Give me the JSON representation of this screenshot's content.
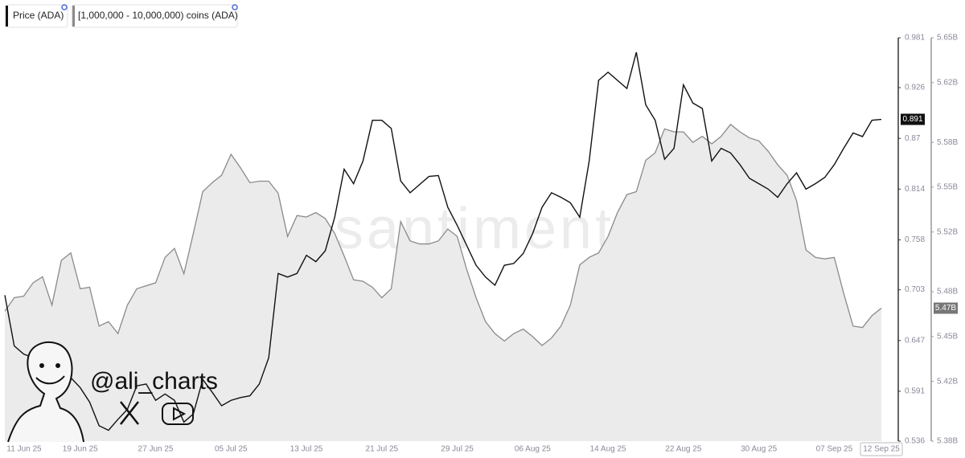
{
  "chart_data": {
    "type": "line",
    "legend": "top-left",
    "watermark": "santiment",
    "annotation": "@ali_charts",
    "x": [
      "11 Jun 25",
      "12 Jun 25",
      "13 Jun 25",
      "14 Jun 25",
      "15 Jun 25",
      "16 Jun 25",
      "17 Jun 25",
      "18 Jun 25",
      "19 Jun 25",
      "20 Jun 25",
      "21 Jun 25",
      "22 Jun 25",
      "23 Jun 25",
      "24 Jun 25",
      "25 Jun 25",
      "26 Jun 25",
      "27 Jun 25",
      "28 Jun 25",
      "29 Jun 25",
      "30 Jun 25",
      "01 Jul 25",
      "02 Jul 25",
      "03 Jul 25",
      "04 Jul 25",
      "05 Jul 25",
      "06 Jul 25",
      "07 Jul 25",
      "08 Jul 25",
      "09 Jul 25",
      "10 Jul 25",
      "11 Jul 25",
      "12 Jul 25",
      "13 Jul 25",
      "14 Jul 25",
      "15 Jul 25",
      "16 Jul 25",
      "17 Jul 25",
      "18 Jul 25",
      "19 Jul 25",
      "20 Jul 25",
      "21 Jul 25",
      "22 Jul 25",
      "23 Jul 25",
      "24 Jul 25",
      "25 Jul 25",
      "26 Jul 25",
      "27 Jul 25",
      "28 Jul 25",
      "29 Jul 25",
      "30 Jul 25",
      "31 Jul 25",
      "01 Aug 25",
      "02 Aug 25",
      "03 Aug 25",
      "04 Aug 25",
      "05 Aug 25",
      "06 Aug 25",
      "07 Aug 25",
      "08 Aug 25",
      "09 Aug 25",
      "10 Aug 25",
      "11 Aug 25",
      "12 Aug 25",
      "13 Aug 25",
      "14 Aug 25",
      "15 Aug 25",
      "16 Aug 25",
      "17 Aug 25",
      "18 Aug 25",
      "19 Aug 25",
      "20 Aug 25",
      "21 Aug 25",
      "22 Aug 25",
      "23 Aug 25",
      "24 Aug 25",
      "25 Aug 25",
      "26 Aug 25",
      "27 Aug 25",
      "28 Aug 25",
      "29 Aug 25",
      "30 Aug 25",
      "31 Aug 25",
      "01 Sep 25",
      "02 Sep 25",
      "03 Sep 25",
      "04 Sep 25",
      "05 Sep 25",
      "06 Sep 25",
      "07 Sep 25",
      "08 Sep 25",
      "09 Sep 25",
      "10 Sep 25",
      "11 Sep 25",
      "12 Sep 25"
    ],
    "xticks": [
      "11 Jun 25",
      "19 Jun 25",
      "27 Jun 25",
      "05 Jul 25",
      "13 Jul 25",
      "21 Jul 25",
      "29 Jul 25",
      "06 Aug 25",
      "14 Aug 25",
      "22 Aug 25",
      "30 Aug 25",
      "07 Sep 25",
      "12 Sep 25"
    ],
    "ylim": [
      0.536,
      0.981
    ],
    "yticks": [
      0.981,
      0.926,
      0.87,
      0.814,
      0.758,
      0.703,
      0.647,
      0.591,
      0.536
    ],
    "y2lim": [
      5.38,
      5.65
    ],
    "y2ticks": [
      {
        "value": 5.65,
        "label": "5.65B"
      },
      {
        "value": 5.62,
        "label": "5.62B"
      },
      {
        "value": 5.58,
        "label": "5.58B"
      },
      {
        "value": 5.55,
        "label": "5.55B"
      },
      {
        "value": 5.52,
        "label": "5.52B"
      },
      {
        "value": 5.48,
        "label": "5.48B"
      },
      {
        "value": 5.45,
        "label": "5.45B"
      },
      {
        "value": 5.42,
        "label": "5.42B"
      },
      {
        "value": 5.38,
        "label": "5.38B"
      }
    ],
    "series": [
      {
        "name": "Price (ADA)",
        "color": "#111111",
        "axis": "y",
        "values": [
          0.697,
          0.641,
          0.632,
          0.628,
          0.64,
          0.626,
          0.617,
          0.606,
          0.595,
          0.579,
          0.553,
          0.548,
          0.56,
          0.571,
          0.597,
          0.599,
          0.581,
          0.588,
          0.581,
          0.557,
          0.566,
          0.604,
          0.59,
          0.575,
          0.581,
          0.584,
          0.586,
          0.599,
          0.628,
          0.721,
          0.717,
          0.721,
          0.741,
          0.734,
          0.746,
          0.783,
          0.836,
          0.82,
          0.845,
          0.89,
          0.89,
          0.881,
          0.823,
          0.81,
          0.819,
          0.828,
          0.829,
          0.794,
          0.774,
          0.752,
          0.73,
          0.717,
          0.708,
          0.73,
          0.732,
          0.743,
          0.765,
          0.794,
          0.81,
          0.805,
          0.799,
          0.783,
          0.845,
          0.934,
          0.943,
          0.934,
          0.925,
          0.965,
          0.907,
          0.89,
          0.847,
          0.859,
          0.929,
          0.909,
          0.903,
          0.845,
          0.859,
          0.854,
          0.841,
          0.826,
          0.82,
          0.814,
          0.805,
          0.82,
          0.832,
          0.814,
          0.82,
          0.827,
          0.841,
          0.859,
          0.876,
          0.872,
          0.89,
          0.891
        ]
      },
      {
        "name": "[1,000,000 - 10,000,000) coins (ADA)",
        "color": "#8a8a8a",
        "fill": "#ebebeb",
        "axis": "y2",
        "end_label": "5.47B",
        "values": [
          5.467,
          5.476,
          5.477,
          5.486,
          5.49,
          5.471,
          5.501,
          5.506,
          5.482,
          5.483,
          5.457,
          5.46,
          5.452,
          5.471,
          5.482,
          5.484,
          5.486,
          5.503,
          5.509,
          5.492,
          5.519,
          5.547,
          5.553,
          5.558,
          5.572,
          5.563,
          5.553,
          5.554,
          5.554,
          5.546,
          5.517,
          5.531,
          5.53,
          5.533,
          5.529,
          5.519,
          5.504,
          5.488,
          5.487,
          5.483,
          5.476,
          5.482,
          5.527,
          5.514,
          5.512,
          5.512,
          5.514,
          5.522,
          5.517,
          5.495,
          5.476,
          5.46,
          5.452,
          5.447,
          5.452,
          5.455,
          5.45,
          5.444,
          5.449,
          5.457,
          5.471,
          5.498,
          5.503,
          5.506,
          5.517,
          5.533,
          5.545,
          5.547,
          5.568,
          5.573,
          5.589,
          5.587,
          5.587,
          5.58,
          5.584,
          5.579,
          5.584,
          5.592,
          5.587,
          5.583,
          5.581,
          5.574,
          5.565,
          5.558,
          5.541,
          5.508,
          5.503,
          5.502,
          5.503,
          5.479,
          5.457,
          5.456,
          5.464,
          5.469
        ]
      }
    ]
  }
}
